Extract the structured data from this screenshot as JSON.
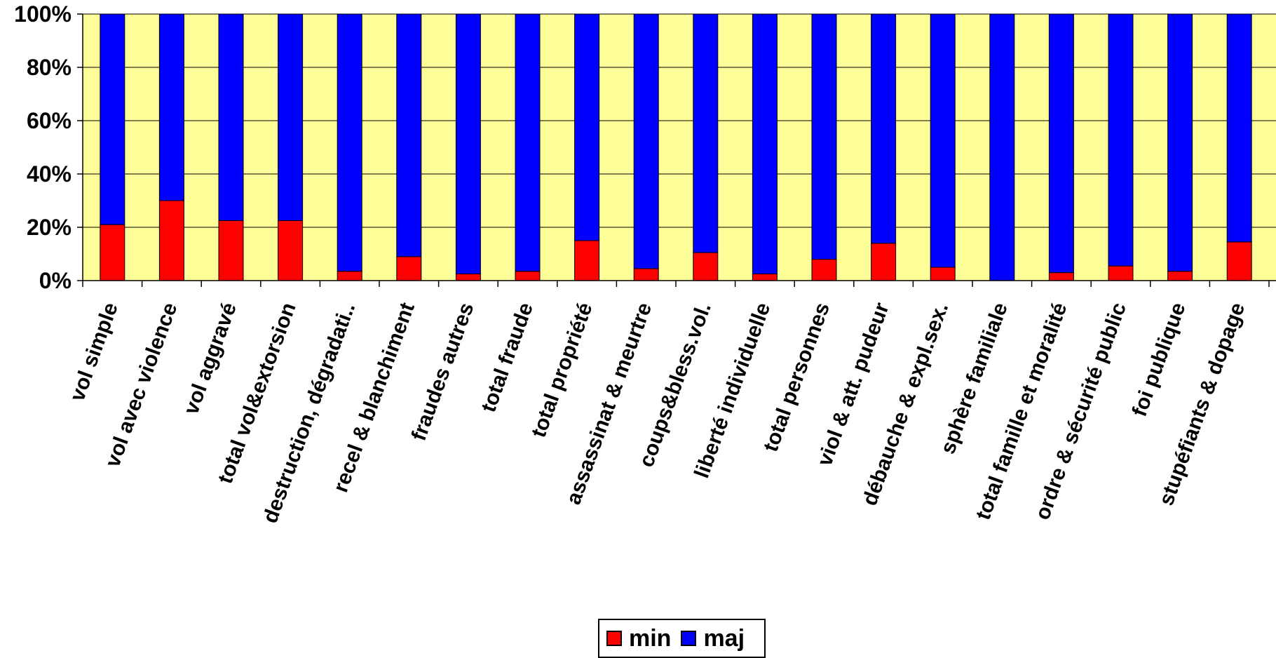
{
  "chart_data": {
    "type": "bar",
    "stacked": true,
    "percent": true,
    "categories": [
      "vol simple",
      "vol avec violence",
      "vol aggravé",
      "total vol&extorsion",
      "destruction, dégradati..",
      "recel & blanchiment",
      "fraudes autres",
      "total fraude",
      "total propriété",
      "assassinat & meurtre",
      "coups&bless.vol.",
      "liberté individuelle",
      "total personnes",
      "viol & att. pudeur",
      "débauche & expl.sex.",
      "sphère familiale",
      "total famille et moralité",
      "ordre & sécurité public",
      "foi publique",
      "stupéfiants & dopage"
    ],
    "series": [
      {
        "name": "min",
        "color": "#ff0000",
        "values": [
          21,
          30,
          22.5,
          22.5,
          3.5,
          9,
          2.5,
          3.5,
          15,
          4.5,
          10.5,
          2.5,
          8,
          14,
          5,
          0,
          3,
          5.5,
          3.5,
          14.5
        ]
      },
      {
        "name": "maj",
        "color": "#0000ff",
        "values": [
          79,
          70,
          77.5,
          77.5,
          96.5,
          91,
          97.5,
          96.5,
          85,
          95.5,
          89.5,
          97.5,
          92,
          86,
          95,
          100,
          97,
          94.5,
          96.5,
          85.5
        ]
      }
    ],
    "yticks": [
      "0%",
      "20%",
      "40%",
      "60%",
      "80%",
      "100%"
    ],
    "ylim": [
      0,
      100
    ],
    "grid": true,
    "plot_background": "#ffff99",
    "legend_position": "bottom"
  }
}
